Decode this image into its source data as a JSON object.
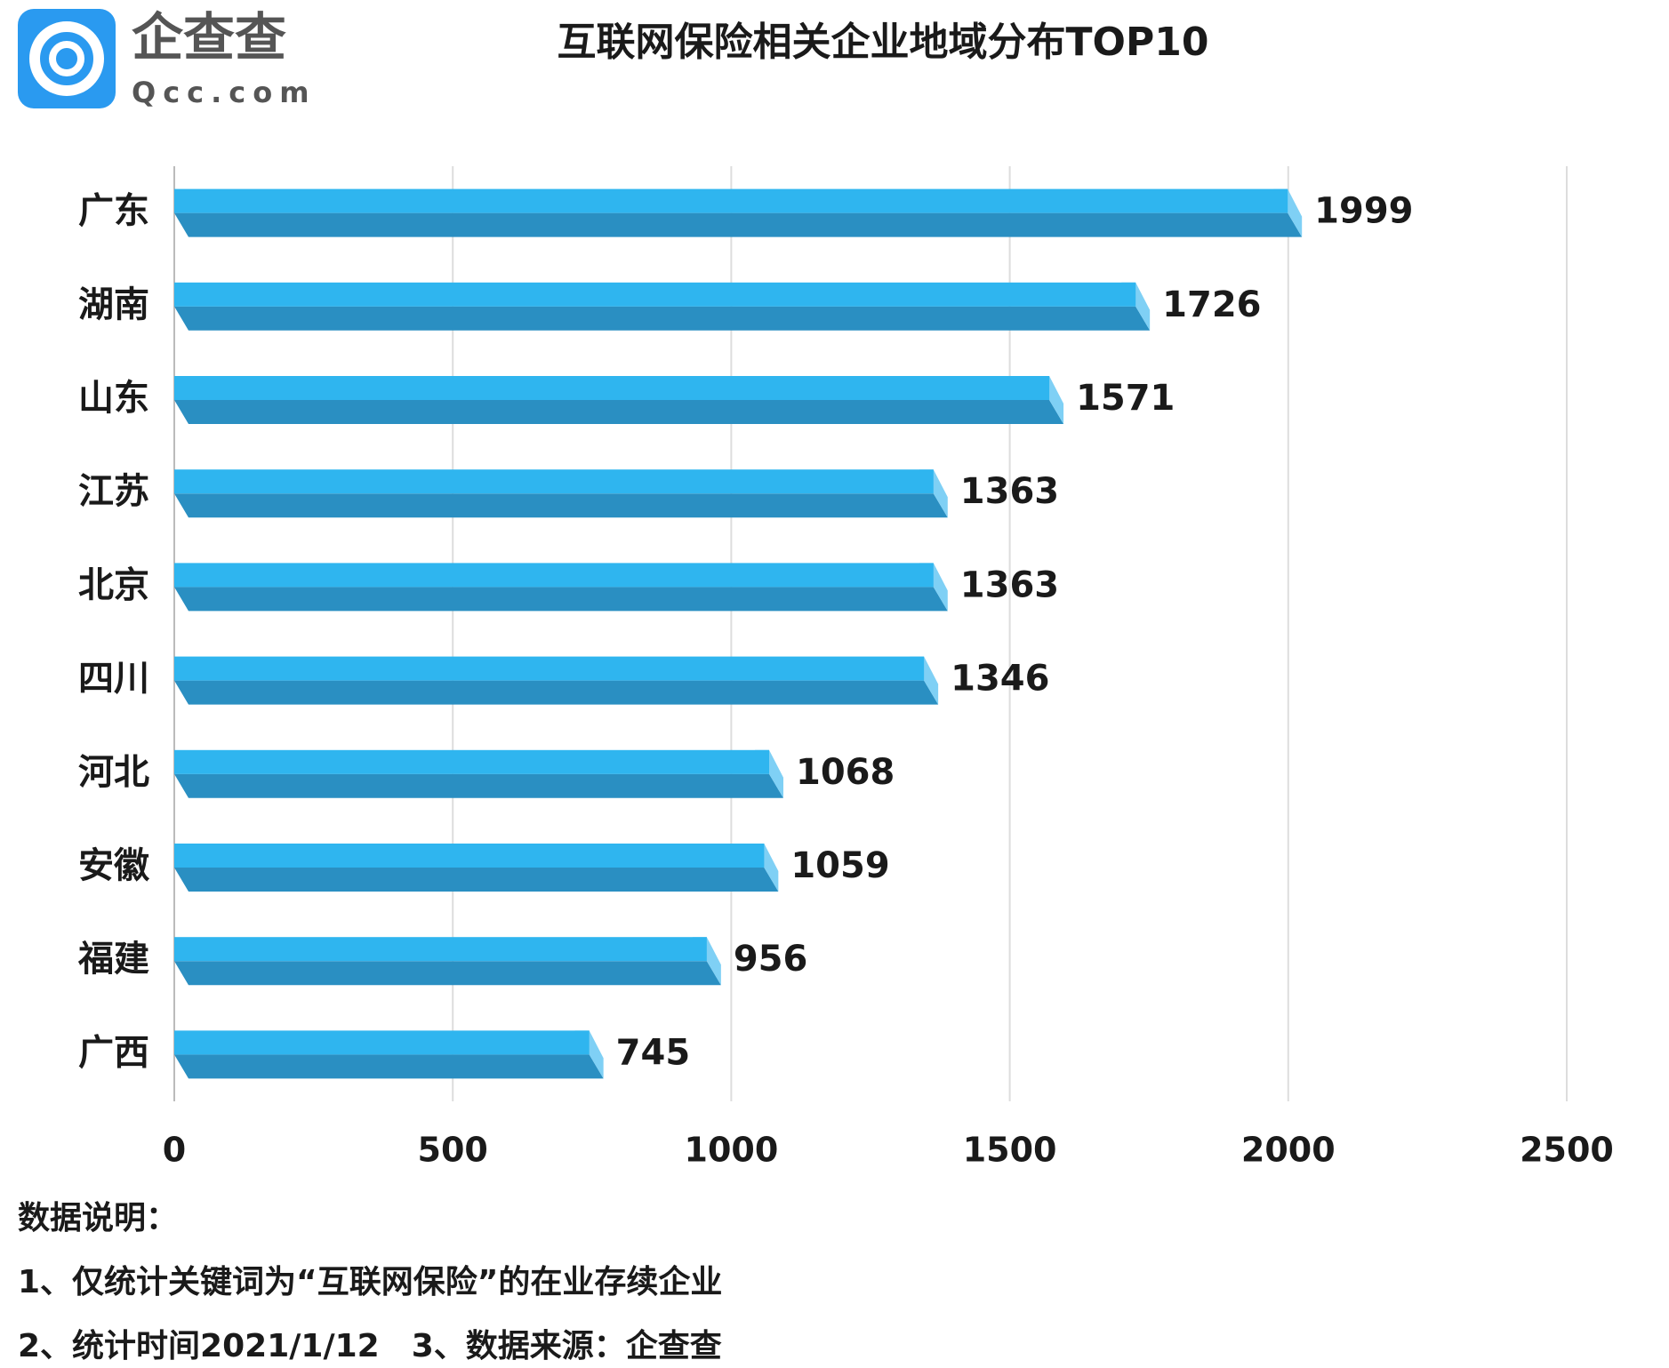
{
  "logo": {
    "name": "企查查",
    "site": "Qcc.com"
  },
  "chart_data": {
    "type": "bar",
    "orientation": "horizontal",
    "title": "互联网保险相关企业地域分布TOP10",
    "categories": [
      "广东",
      "湖南",
      "山东",
      "江苏",
      "北京",
      "四川",
      "河北",
      "安徽",
      "福建",
      "广西"
    ],
    "values": [
      1999,
      1726,
      1571,
      1363,
      1363,
      1346,
      1068,
      1059,
      956,
      745
    ],
    "color": "#2fb5ef",
    "xlim": [
      0,
      2500
    ],
    "xticks": [
      0,
      500,
      1000,
      1500,
      2000,
      2500
    ],
    "grid": true
  },
  "notes": {
    "heading": "数据说明：",
    "lines": [
      "1、仅统计关键词为“互联网保险”的在业存续企业",
      "2、统计时间2021/1/12　3、数据来源：企查查"
    ]
  }
}
